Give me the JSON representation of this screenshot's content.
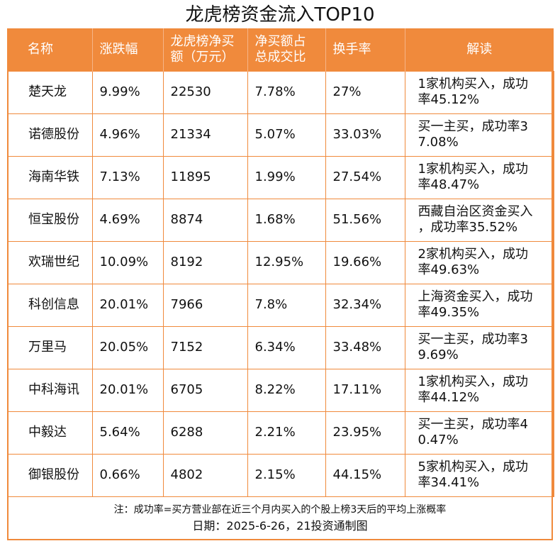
{
  "title": "龙虎榜资金流入TOP10",
  "headers": {
    "name": "名称",
    "change": "涨跌幅",
    "net_buy_l1": "龙虎榜净买",
    "net_buy_l2": "额（万元）",
    "ratio_l1": "净买额占",
    "ratio_l2": "总成交比",
    "turnover": "换手率",
    "interpret": "解读"
  },
  "rows": [
    {
      "name": "楚天龙",
      "change": "9.99%",
      "net_buy": "22530",
      "ratio": "7.78%",
      "turnover": "27%",
      "interpret_l1": "1家机构买入，成功",
      "interpret_l2": "率45.12%"
    },
    {
      "name": "诺德股份",
      "change": "4.96%",
      "net_buy": "21334",
      "ratio": "5.07%",
      "turnover": "33.03%",
      "interpret_l1": "买一主买，成功率3",
      "interpret_l2": "7.08%"
    },
    {
      "name": "海南华铁",
      "change": "7.13%",
      "net_buy": "11895",
      "ratio": "1.99%",
      "turnover": "27.54%",
      "interpret_l1": "1家机构买入，成功",
      "interpret_l2": "率48.47%"
    },
    {
      "name": "恒宝股份",
      "change": "4.69%",
      "net_buy": "8874",
      "ratio": "1.68%",
      "turnover": "51.56%",
      "interpret_l1": "西藏自治区资金买入",
      "interpret_l2": "，成功率35.52%"
    },
    {
      "name": "欢瑞世纪",
      "change": "10.09%",
      "net_buy": "8192",
      "ratio": "12.95%",
      "turnover": "19.66%",
      "interpret_l1": "2家机构买入，成功",
      "interpret_l2": "率49.63%"
    },
    {
      "name": "科创信息",
      "change": "20.01%",
      "net_buy": "7966",
      "ratio": "7.8%",
      "turnover": "32.34%",
      "interpret_l1": "上海资金买入，成功",
      "interpret_l2": "率49.35%"
    },
    {
      "name": "万里马",
      "change": "20.05%",
      "net_buy": "7152",
      "ratio": "6.34%",
      "turnover": "33.48%",
      "interpret_l1": "买一主买，成功率3",
      "interpret_l2": "9.69%"
    },
    {
      "name": "中科海讯",
      "change": "20.01%",
      "net_buy": "6705",
      "ratio": "8.22%",
      "turnover": "17.11%",
      "interpret_l1": "1家机构买入，成功",
      "interpret_l2": "率44.12%"
    },
    {
      "name": "中毅达",
      "change": "5.64%",
      "net_buy": "6288",
      "ratio": "2.21%",
      "turnover": "23.95%",
      "interpret_l1": "买一主买，成功率4",
      "interpret_l2": "0.47%"
    },
    {
      "name": "御银股份",
      "change": "0.66%",
      "net_buy": "4802",
      "ratio": "2.15%",
      "turnover": "44.15%",
      "interpret_l1": "5家机构买入，成功",
      "interpret_l2": "率34.41%"
    }
  ],
  "note": "注：成功率=买方营业部在近三个月内买入的个股上榜3天后的平均上涨概率",
  "footer": "日期：2025-6-26，21投资通制图",
  "colors": {
    "accent": "#f08a3c",
    "header_text": "#ffffff"
  }
}
